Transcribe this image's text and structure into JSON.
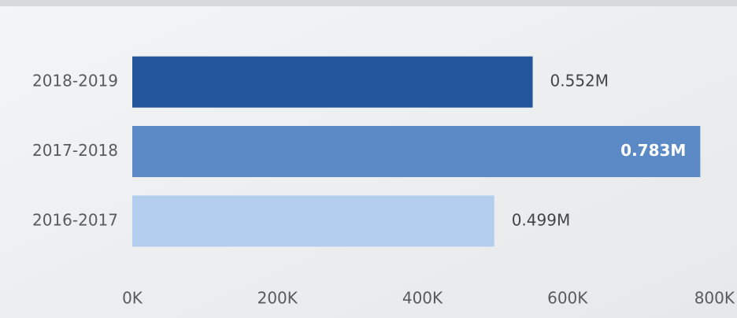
{
  "chart_data": {
    "type": "barh",
    "categories": [
      "2018-2019",
      "2017-2018",
      "2016-2017"
    ],
    "values": [
      552000,
      783000,
      499000
    ],
    "value_labels": [
      "0.552M",
      "0.783M",
      "0.499M"
    ],
    "colors": [
      "#23559a",
      "#5b8ac6",
      "#b3cdee"
    ],
    "xlim": [
      0,
      800000
    ],
    "xticks": [
      {
        "value": 0,
        "label": "0K"
      },
      {
        "value": 200000,
        "label": "200K"
      },
      {
        "value": 400000,
        "label": "400K"
      },
      {
        "value": 600000,
        "label": "600K"
      },
      {
        "value": 800000,
        "label": "800K"
      }
    ]
  }
}
